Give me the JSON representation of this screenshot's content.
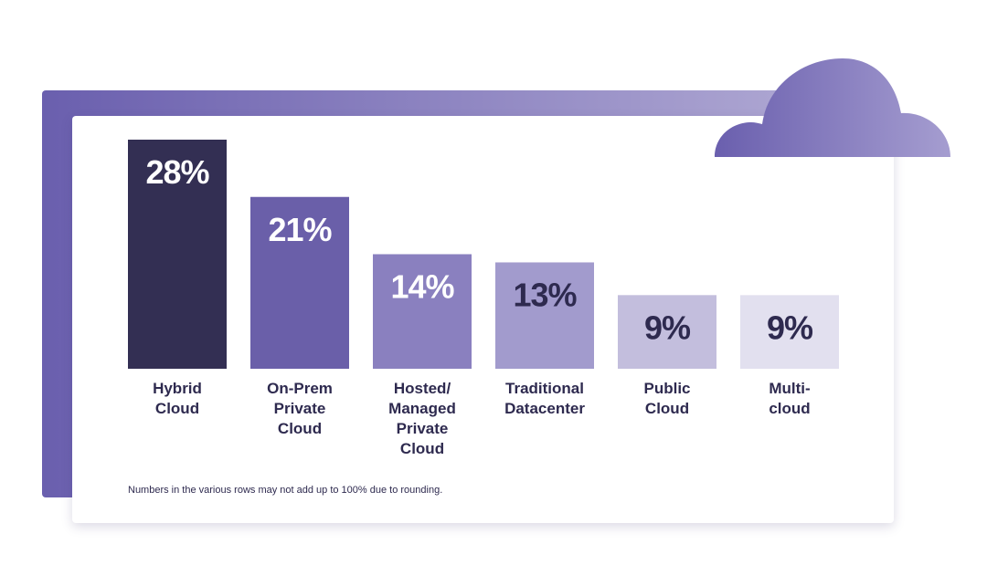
{
  "colors": {
    "panel_gradient": [
      "#6a5fae",
      "#b1aad4"
    ],
    "cloud_gradient": [
      "#6a5fae",
      "#a59dd0"
    ],
    "label_text": "#2e2a4f"
  },
  "chart_data": {
    "type": "bar",
    "title": "",
    "xlabel": "",
    "ylabel": "",
    "ylim": [
      0,
      28
    ],
    "grid": false,
    "legend": "none",
    "categories": [
      "Hybrid Cloud",
      "On-Prem Private Cloud",
      "Hosted/ Managed Private Cloud",
      "Traditional Datacenter",
      "Public Cloud",
      "Multi- cloud"
    ],
    "category_lines": [
      [
        "Hybrid",
        "Cloud"
      ],
      [
        "On-Prem",
        "Private",
        "Cloud"
      ],
      [
        "Hosted/",
        "Managed",
        "Private",
        "Cloud"
      ],
      [
        "Traditional",
        "Datacenter"
      ],
      [
        "Public",
        "Cloud"
      ],
      [
        "Multi-",
        "cloud"
      ]
    ],
    "values": [
      28,
      21,
      14,
      13,
      9,
      9
    ],
    "data_labels": [
      "28%",
      "21%",
      "14%",
      "13%",
      "9%",
      "9%"
    ],
    "bar_colors": [
      "#332f53",
      "#6a5fa9",
      "#8a80bf",
      "#a29bcd",
      "#c3bedd",
      "#e2e0ef"
    ],
    "label_colors": [
      "#ffffff",
      "#ffffff",
      "#ffffff",
      "#2e2a4f",
      "#2e2a4f",
      "#2e2a4f"
    ],
    "footnote": "Numbers in the various rows may not add up to 100% due to rounding."
  }
}
